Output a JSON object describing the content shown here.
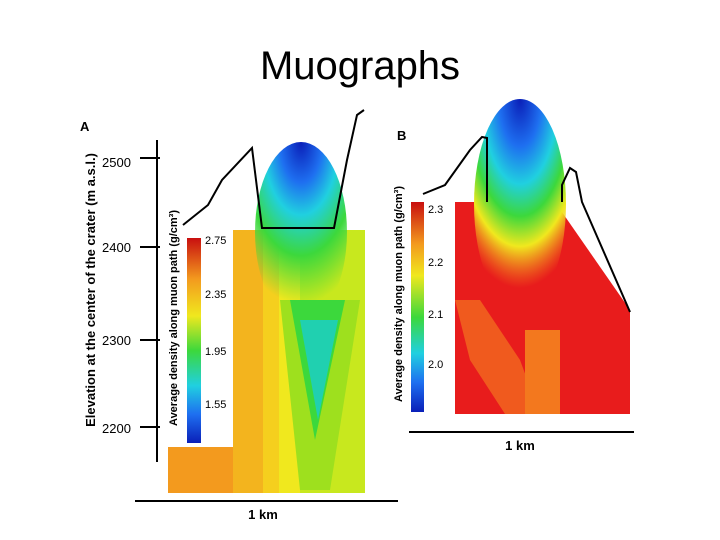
{
  "slide": {
    "title": "Muographs"
  },
  "panel_a": {
    "label": "A",
    "y_axis_label": "Elevation at the center of the crater (m a.s.l.)",
    "y_ticks": [
      "2500",
      "2400",
      "2300",
      "2200"
    ],
    "colorbar_label": "Average density along muon path (g/cm³)",
    "colorbar_ticks": [
      "2.75",
      "2.35",
      "1.95",
      "1.55"
    ],
    "scale_label": "1 km"
  },
  "panel_b": {
    "label": "B",
    "colorbar_label": "Average density along muon path (g/cm³)",
    "colorbar_ticks": [
      "2.3",
      "2.2",
      "2.1",
      "2.0"
    ],
    "scale_label": "1 km"
  },
  "colors": {
    "dark_blue": "#0a1fb8",
    "blue": "#1e6ff0",
    "cyan": "#20d0e0",
    "green": "#3cd83c",
    "yellow_green": "#c8e81e",
    "yellow": "#f0e81e",
    "orange": "#f39a1e",
    "red": "#e81c1c",
    "dark_red": "#c80f0f"
  }
}
